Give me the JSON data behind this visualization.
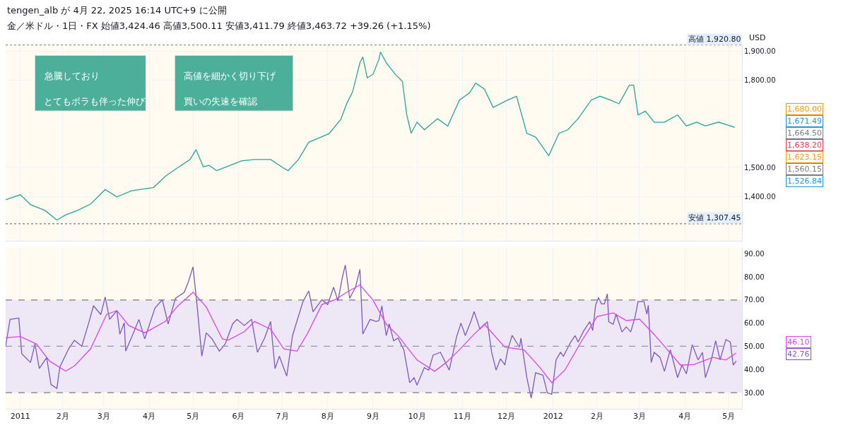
{
  "chart_data": [
    {
      "type": "line",
      "title": "金／米ドル・1日・FX 始値3,424.46 高値3,500.11 安値3,411.79 終値3,463.72 +39.26 (+1.15%)",
      "subtitle": "tengen_alb が 4月 22, 2025 16:14 UTC+9 に公開",
      "ylabel": "USD",
      "annotations": [
        "急騰しており",
        "とてもボラも伴った伸び",
        "高値を細かく切り下げ",
        "買いの失速を確認",
        "1,680.00",
        "1,671.49",
        "1,664.50",
        "1,638.20",
        "1,623.15",
        "1,560.15",
        "1,526.84"
      ],
      "x": [
        "2010-12-24",
        "2011-01-03",
        "2011-01-10",
        "2011-01-20",
        "2011-01-28",
        "2011-02-03",
        "2011-02-11",
        "2011-02-20",
        "2011-03-02",
        "2011-03-10",
        "2011-03-20",
        "2011-04-04",
        "2011-04-12",
        "2011-04-20",
        "2011-04-29",
        "2011-05-03",
        "2011-05-08",
        "2011-05-12",
        "2011-05-17",
        "2011-05-24",
        "2011-06-03",
        "2011-06-12",
        "2011-06-23",
        "2011-07-02",
        "2011-07-05",
        "2011-07-12",
        "2011-07-19",
        "2011-07-26",
        "2011-08-02",
        "2011-08-10",
        "2011-08-14",
        "2011-08-18",
        "2011-08-23",
        "2011-08-25",
        "2011-08-28",
        "2011-09-01",
        "2011-09-05",
        "2011-09-06",
        "2011-09-10",
        "2011-09-16",
        "2011-09-21",
        "2011-09-24",
        "2011-09-27",
        "2011-10-01",
        "2011-10-06",
        "2011-10-15",
        "2011-10-22",
        "2011-10-30",
        "2011-11-06",
        "2011-11-10",
        "2011-11-16",
        "2011-11-22",
        "2011-12-02",
        "2011-12-08",
        "2011-12-15",
        "2011-12-21",
        "2011-12-30",
        "2012-01-06",
        "2012-01-12",
        "2012-01-19",
        "2012-01-28",
        "2012-02-03",
        "2012-02-10",
        "2012-02-16",
        "2012-02-23",
        "2012-02-26",
        "2012-02-29",
        "2012-03-05",
        "2012-03-11",
        "2012-03-18",
        "2012-03-27",
        "2012-04-02",
        "2012-04-09",
        "2012-04-15",
        "2012-04-24",
        "2012-05-01",
        "2012-05-05"
      ],
      "series": [
        {
          "color": "#26a69a",
          "values": [
            1390,
            1407,
            1373,
            1353,
            1320,
            1338,
            1353,
            1375,
            1425,
            1400,
            1421,
            1432,
            1470,
            1498,
            1528,
            1562,
            1503,
            1508,
            1490,
            1503,
            1523,
            1528,
            1528,
            1498,
            1490,
            1528,
            1587,
            1602,
            1617,
            1666,
            1720,
            1760,
            1860,
            1880,
            1808,
            1821,
            1872,
            1897,
            1860,
            1821,
            1796,
            1681,
            1618,
            1656,
            1630,
            1668,
            1643,
            1732,
            1757,
            1790,
            1770,
            1707,
            1732,
            1745,
            1618,
            1605,
            1541,
            1618,
            1630,
            1668,
            1732,
            1745,
            1732,
            1719,
            1783,
            1783,
            1681,
            1694,
            1656,
            1656,
            1681,
            1643,
            1656,
            1643,
            1656,
            1645,
            1638
          ]
        }
      ],
      "xlim": [
        "2010-12-24",
        "2012-05-10"
      ],
      "ylim": [
        1250,
        1925
      ],
      "yticks": [
        {
          "value": 1400,
          "label": "1,400.00"
        },
        {
          "value": 1500,
          "label": "1,500.00"
        },
        {
          "value": 1800,
          "label": "1,800.00"
        },
        {
          "value": 1900,
          "label": "1,900.00"
        }
      ],
      "ref_lines": [
        {
          "axis": "y",
          "value": 1920.8,
          "label": "高値 1,920.80",
          "line_style": "dotted",
          "color": "#787b86"
        },
        {
          "axis": "y",
          "value": 1307.45,
          "label": "安値 1,307.45",
          "line_style": "dotted",
          "color": "#787b86"
        }
      ],
      "grid": true,
      "tick_labels": "y"
    },
    {
      "type": "line",
      "xlim": [
        "2010-12-24",
        "2012-05-10"
      ],
      "ylim": [
        23,
        92.5
      ],
      "xticks": [
        {
          "value": "2011-01-03",
          "label": "2011"
        },
        {
          "value": "2011-02-01",
          "label": "2月"
        },
        {
          "value": "2011-03-01",
          "label": "3月"
        },
        {
          "value": "2011-04-01",
          "label": "4月"
        },
        {
          "value": "2011-05-01",
          "label": "5月"
        },
        {
          "value": "2011-06-01",
          "label": "6月"
        },
        {
          "value": "2011-07-01",
          "label": "7月"
        },
        {
          "value": "2011-08-01",
          "label": "8月"
        },
        {
          "value": "2011-09-01",
          "label": "9月"
        },
        {
          "value": "2011-10-01",
          "label": "10月"
        },
        {
          "value": "2011-11-01",
          "label": "11月"
        },
        {
          "value": "2011-12-01",
          "label": "12月"
        },
        {
          "value": "2012-01-02",
          "label": "2012"
        },
        {
          "value": "2012-02-01",
          "label": "2月"
        },
        {
          "value": "2012-03-01",
          "label": "3月"
        },
        {
          "value": "2012-04-01",
          "label": "4月"
        },
        {
          "value": "2012-05-01",
          "label": "5月"
        }
      ],
      "yticks": [
        {
          "value": 30,
          "label": "30.00"
        },
        {
          "value": 40,
          "label": "40.00"
        },
        {
          "value": 50,
          "label": "50.00"
        },
        {
          "value": 60,
          "label": "60.00"
        },
        {
          "value": 70,
          "label": "70.00"
        },
        {
          "value": 80,
          "label": "80.00"
        },
        {
          "value": 90,
          "label": "90.00"
        }
      ],
      "series": [
        {
          "color": "#7e57c2",
          "x": [
            "2010-12-24",
            "2010-12-27",
            "2011-01-02",
            "2011-01-04",
            "2011-01-10",
            "2011-01-13",
            "2011-01-16",
            "2011-01-21",
            "2011-01-24",
            "2011-01-28",
            "2011-01-30",
            "2011-02-05",
            "2011-02-09",
            "2011-02-14",
            "2011-02-19",
            "2011-02-22",
            "2011-02-27",
            "2011-03-02",
            "2011-03-05",
            "2011-03-10",
            "2011-03-12",
            "2011-03-15",
            "2011-03-16",
            "2011-03-21",
            "2011-03-25",
            "2011-03-29",
            "2011-04-05",
            "2011-04-10",
            "2011-04-14",
            "2011-04-19",
            "2011-04-25",
            "2011-04-28",
            "2011-05-01",
            "2011-05-04",
            "2011-05-07",
            "2011-05-10",
            "2011-05-14",
            "2011-05-19",
            "2011-05-23",
            "2011-05-28",
            "2011-05-31",
            "2011-06-05",
            "2011-06-10",
            "2011-06-14",
            "2011-06-19",
            "2011-06-23",
            "2011-06-26",
            "2011-06-29",
            "2011-07-04",
            "2011-07-08",
            "2011-07-15",
            "2011-07-19",
            "2011-07-22",
            "2011-07-28",
            "2011-08-01",
            "2011-08-05",
            "2011-08-08",
            "2011-08-11",
            "2011-08-13",
            "2011-08-16",
            "2011-08-20",
            "2011-08-23",
            "2011-08-25",
            "2011-08-30",
            "2011-09-03",
            "2011-09-05",
            "2011-09-07",
            "2011-09-10",
            "2011-09-12",
            "2011-09-15",
            "2011-09-18",
            "2011-09-22",
            "2011-09-26",
            "2011-09-29",
            "2011-10-01",
            "2011-10-06",
            "2011-10-09",
            "2011-10-12",
            "2011-10-17",
            "2011-10-23",
            "2011-10-28",
            "2011-10-31",
            "2011-11-03",
            "2011-11-07",
            "2011-11-09",
            "2011-11-13",
            "2011-11-18",
            "2011-11-21",
            "2011-11-24",
            "2011-11-27",
            "2011-11-30",
            "2011-12-02",
            "2011-12-05",
            "2011-12-10",
            "2011-12-11",
            "2011-12-15",
            "2011-12-18",
            "2011-12-21",
            "2011-12-26",
            "2011-12-29",
            "2012-01-01",
            "2012-01-04",
            "2012-01-07",
            "2012-01-09",
            "2012-01-14",
            "2012-01-17",
            "2012-01-19",
            "2012-01-23",
            "2012-01-27",
            "2012-01-29",
            "2012-01-31",
            "2012-02-02",
            "2012-02-04",
            "2012-02-06",
            "2012-02-08",
            "2012-02-09",
            "2012-02-12",
            "2012-02-14",
            "2012-02-18",
            "2012-02-21",
            "2012-02-24",
            "2012-02-27",
            "2012-02-29",
            "2012-03-04",
            "2012-03-06",
            "2012-03-07",
            "2012-03-09",
            "2012-03-11",
            "2012-03-15",
            "2012-03-18",
            "2012-03-22",
            "2012-03-27",
            "2012-03-30",
            "2012-04-02",
            "2012-04-06",
            "2012-04-10",
            "2012-04-13",
            "2012-04-15",
            "2012-04-19",
            "2012-04-22",
            "2012-04-25",
            "2012-04-29",
            "2012-05-02",
            "2012-05-04",
            "2012-05-06"
          ],
          "values": [
            50.0,
            61.6,
            62.2,
            46.8,
            43.0,
            51.0,
            40.4,
            45.1,
            33.5,
            31.8,
            41.0,
            48.9,
            52.6,
            50.0,
            60.7,
            67.5,
            63.7,
            71.3,
            61.6,
            65.4,
            55.2,
            60.1,
            47.9,
            55.3,
            61.6,
            53.2,
            66.5,
            70.1,
            59.6,
            70.7,
            73.3,
            78.2,
            84.3,
            66.0,
            45.7,
            55.8,
            53.2,
            47.9,
            51.0,
            59.6,
            61.6,
            59.0,
            61.6,
            47.4,
            53.7,
            60.7,
            40.4,
            45.7,
            37.1,
            54.7,
            69.1,
            73.9,
            64.9,
            70.1,
            68.0,
            75.5,
            69.6,
            79.7,
            85.1,
            70.7,
            75.5,
            83.2,
            55.3,
            61.6,
            60.7,
            61.1,
            67.4,
            54.6,
            59.7,
            52.4,
            53.5,
            48.5,
            34.3,
            36.4,
            33.2,
            40.8,
            39.7,
            46.2,
            47.4,
            39.7,
            54.0,
            60.0,
            54.6,
            61.1,
            65.0,
            57.4,
            60.6,
            47.4,
            39.7,
            44.6,
            41.9,
            48.5,
            54.7,
            49.6,
            53.5,
            36.5,
            27.6,
            38.6,
            37.5,
            29.9,
            29.3,
            44.1,
            47.4,
            45.7,
            51.8,
            54.6,
            51.8,
            56.8,
            60.6,
            56.8,
            67.7,
            71.0,
            68.3,
            68.3,
            72.6,
            60.6,
            59.5,
            63.9,
            56.2,
            58.4,
            56.2,
            62.8,
            69.3,
            69.3,
            63.9,
            67.7,
            43.0,
            47.4,
            45.2,
            39.2,
            48.5,
            36.5,
            41.9,
            38.1,
            50.7,
            44.1,
            47.4,
            36.5,
            44.1,
            52.4,
            44.1,
            52.9,
            51.8,
            41.9,
            43.6
          ]
        },
        {
          "color": "#e040fb",
          "x": [
            "2010-12-24",
            "2011-01-03",
            "2011-01-14",
            "2011-01-23",
            "2011-02-03",
            "2011-02-09",
            "2011-02-20",
            "2011-03-03",
            "2011-03-10",
            "2011-03-18",
            "2011-03-29",
            "2011-04-12",
            "2011-04-20",
            "2011-05-01",
            "2011-05-10",
            "2011-05-21",
            "2011-05-25",
            "2011-06-05",
            "2011-06-12",
            "2011-06-23",
            "2011-07-02",
            "2011-07-11",
            "2011-07-18",
            "2011-07-28",
            "2011-08-06",
            "2011-08-14",
            "2011-08-23",
            "2011-09-01",
            "2011-09-10",
            "2011-09-18",
            "2011-10-01",
            "2011-10-13",
            "2011-10-21",
            "2011-10-30",
            "2011-11-08",
            "2011-11-16",
            "2011-11-30",
            "2011-12-13",
            "2011-12-24",
            "2012-01-01",
            "2012-01-10",
            "2012-01-21",
            "2012-02-01",
            "2012-02-12",
            "2012-02-21",
            "2012-03-01",
            "2012-03-11",
            "2012-03-20",
            "2012-03-29",
            "2012-04-07",
            "2012-04-20",
            "2012-04-29",
            "2012-05-06"
          ],
          "values": [
            53.7,
            54.2,
            51.0,
            43.6,
            39.3,
            41.5,
            48.9,
            63.8,
            65.4,
            59.0,
            55.8,
            60.7,
            67.0,
            73.3,
            67.0,
            53.2,
            52.6,
            56.3,
            60.7,
            57.4,
            48.9,
            47.9,
            55.3,
            68.0,
            70.1,
            73.3,
            76.5,
            69.9,
            59.5,
            54.6,
            44.1,
            39.2,
            43.0,
            48.5,
            54.6,
            59.5,
            49.6,
            48.5,
            40.8,
            34.3,
            39.7,
            51.8,
            62.8,
            64.4,
            61.1,
            61.7,
            55.1,
            48.5,
            41.9,
            42.1,
            45.2,
            44.1,
            47.1
          ]
        }
      ],
      "ref_lines": [
        {
          "axis": "y",
          "value": 70,
          "line_style": "dashed",
          "color": "#787b86"
        },
        {
          "axis": "y",
          "value": 50,
          "line_style": "dashed",
          "color": "#9598a1"
        },
        {
          "axis": "y",
          "value": 30,
          "line_style": "dashed",
          "color": "#787b86"
        }
      ],
      "bands": [
        {
          "axis": "y",
          "from": 30,
          "to": 70,
          "color": "#ede7f6"
        }
      ],
      "annotations": [
        "46.10",
        "42.76"
      ],
      "grid": "x"
    }
  ]
}
